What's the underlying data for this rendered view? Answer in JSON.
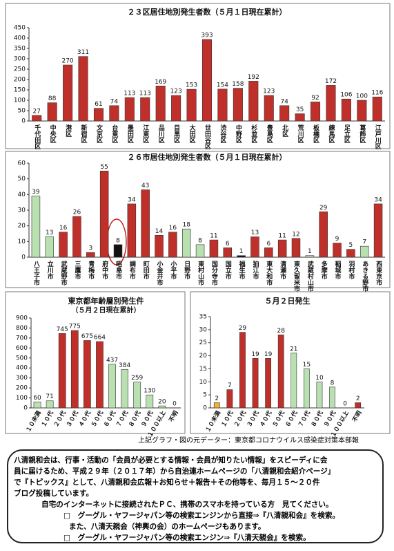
{
  "chart_data": [
    {
      "type": "bar",
      "title": "２３区居住地別発生者数（５月１日現在累計）",
      "categories": [
        "千代田区",
        "中央区",
        "港区",
        "新宿区",
        "文京区",
        "台東区",
        "墨田区",
        "江東区",
        "品川区",
        "目黒区",
        "大田区",
        "世田谷区",
        "渋谷区",
        "中野区",
        "杉並区",
        "豊島区",
        "北区",
        "荒川区",
        "板橋区",
        "練馬区",
        "足立区",
        "葛飾区",
        "江戸川区"
      ],
      "values": [
        27,
        88,
        270,
        311,
        61,
        74,
        113,
        113,
        169,
        123,
        153,
        393,
        154,
        158,
        192,
        123,
        74,
        35,
        92,
        172,
        106,
        100,
        116
      ],
      "color": "#c0302a",
      "ylim": [
        0,
        450
      ],
      "yticks": [
        0,
        50,
        100,
        150,
        200,
        250,
        300,
        350,
        400,
        450
      ]
    },
    {
      "type": "bar",
      "title": "２６市居住地別発生者数（５月１日現在累計）",
      "categories": [
        "八王子市",
        "立川市",
        "武蔵野市",
        "三鷹市",
        "青梅市",
        "府中市",
        "昭島市",
        "調布市",
        "町田市",
        "小金井市",
        "小平市",
        "日野市",
        "東村山市",
        "国分寺市",
        "国立市",
        "福生市",
        "狛江市",
        "東大和市",
        "清瀬市",
        "東久留米市",
        "武蔵村山市",
        "多摩市",
        "稲城市",
        "羽村市",
        "あきる野市",
        "西東京市"
      ],
      "values": [
        39,
        13,
        16,
        26,
        3,
        55,
        8,
        34,
        43,
        14,
        16,
        18,
        8,
        11,
        6,
        1,
        13,
        6,
        11,
        12,
        1,
        29,
        9,
        5,
        7,
        34
      ],
      "colors": [
        "#b8e0b0",
        "#b8e0b0",
        "#c0302a",
        "#c0302a",
        "#c0302a",
        "#c0302a",
        "#111111",
        "#c0302a",
        "#c0302a",
        "#c0302a",
        "#c0302a",
        "#b8e0b0",
        "#b8e0b0",
        "#c0302a",
        "#c0302a",
        "#111111",
        "#c0302a",
        "#c0302a",
        "#c0302a",
        "#c0302a",
        "#b8e0b0",
        "#c0302a",
        "#c0302a",
        "#c0302a",
        "#b8e0b0",
        "#c0302a"
      ],
      "ylim": [
        0,
        60
      ],
      "yticks": [
        0,
        10,
        20,
        30,
        40,
        50,
        60
      ]
    },
    {
      "type": "bar",
      "title": "東京都年齢層別発生件",
      "subtitle": "（５月２日現在累計）",
      "categories": [
        "１０未満",
        "１０代",
        "２０代",
        "３０代",
        "４０代",
        "５０代",
        "６０代",
        "７０代",
        "８０代",
        "９０代",
        "１００以上",
        "不明"
      ],
      "values": [
        60,
        71,
        745,
        775,
        675,
        664,
        437,
        384,
        259,
        130,
        20,
        0
      ],
      "colors": [
        "#b8e0b0",
        "#b8e0b0",
        "#c0302a",
        "#c0302a",
        "#c0302a",
        "#c0302a",
        "#b8e0b0",
        "#b8e0b0",
        "#b8e0b0",
        "#b8e0b0",
        "#b8e0b0",
        "#c0302a"
      ],
      "ylim": [
        0,
        900
      ],
      "yticks": [
        0,
        100,
        200,
        300,
        400,
        500,
        600,
        700,
        800,
        900
      ]
    },
    {
      "type": "bar",
      "title": "５月２日発生",
      "categories": [
        "１０未満",
        "１０代",
        "２０代",
        "３０代",
        "４０代",
        "５０代",
        "６０代",
        "７０代",
        "８０代",
        "９０代",
        "１００以上",
        "不明"
      ],
      "values": [
        2,
        7,
        29,
        19,
        19,
        28,
        21,
        15,
        10,
        8,
        0,
        2
      ],
      "colors": [
        "#f0b030",
        "#c0302a",
        "#c0302a",
        "#c0302a",
        "#c0302a",
        "#c0302a",
        "#b8e0b0",
        "#b8e0b0",
        "#b8e0b0",
        "#b8e0b0",
        "#b8e0b0",
        "#c0302a"
      ],
      "ylim": [
        0,
        35
      ],
      "yticks": [
        0,
        5,
        10,
        15,
        20,
        25,
        30,
        35
      ]
    }
  ],
  "source": "上記グラフ・図の元データー：東京都コロナウイルス感染症対策本部報",
  "notice": {
    "lines": [
      "八清親和会は、行事・活動の「会員が必要とする情報・会員が知りたい情報」をスピーディに会",
      "員に届けるため、平成２９年（２０１７年）から自治連ホームページの「八清親和会紹介ページ」",
      "で『トピックス』として、八清親和会広報＋お知らせ＋報告＋その他等を、毎月１５～２０件",
      "ブログ投稿しています。",
      "自宅のインターネットに接続されたＰＣ、携帯のスマホを持っている方　見てください。",
      "□　グーグル・ヤフージャパン等の検索エンジンから直接⇒『八清親和会』を検索。",
      "また、八清天親会（神輿の会）のホームページもあります。",
      "□　グーグル・ヤフージャパン等の検索エンジン⇒『八清天親会』を検索。"
    ]
  }
}
